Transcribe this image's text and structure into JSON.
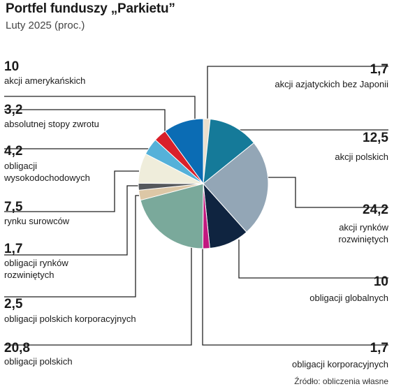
{
  "header": {
    "title": "Portfel funduszy „Parkietu”",
    "subtitle": "Luty 2025 (proc.)"
  },
  "footer": {
    "source": "Źródło: obliczenia własne"
  },
  "chart_data": {
    "type": "pie",
    "title": "Portfel funduszy „Parkietu”",
    "subtitle": "Luty 2025 (proc.)",
    "slices": [
      {
        "value": "1,7",
        "num": 1.7,
        "label": [
          "akcji azjatyckich bez Japonii"
        ],
        "color": "#eadfcd"
      },
      {
        "value": "12,5",
        "num": 12.5,
        "label": [
          "akcji polskich"
        ],
        "color": "#157a99"
      },
      {
        "value": "24,2",
        "num": 24.2,
        "label": [
          "akcji rynków",
          "rozwiniętych"
        ],
        "color": "#93a6b6"
      },
      {
        "value": "10",
        "num": 10,
        "label": [
          "obligacji globalnych"
        ],
        "color": "#0f2440"
      },
      {
        "value": "1,7",
        "num": 1.7,
        "label": [
          "obligacji korporacyjnych"
        ],
        "color": "#c2187f"
      },
      {
        "value": "20,8",
        "num": 20.8,
        "label": [
          "obligacji polskich"
        ],
        "color": "#7aa99b"
      },
      {
        "value": "2,5",
        "num": 2.5,
        "label": [
          "obligacji polskich korporacyjnych"
        ],
        "color": "#dcc7a6"
      },
      {
        "value": "1,7",
        "num": 1.7,
        "label": [
          "obligacji rynków",
          "rozwiniętych"
        ],
        "color": "#55585c"
      },
      {
        "value": "7,5",
        "num": 7.5,
        "label": [
          "rynku surowców"
        ],
        "color": "#efeddb"
      },
      {
        "value": "4,2",
        "num": 4.2,
        "label": [
          "obligacji",
          "wysokodochodowych"
        ],
        "color": "#55b1d9"
      },
      {
        "value": "3,2",
        "num": 3.2,
        "label": [
          "absolutnej stopy zwrotu"
        ],
        "color": "#d9202b"
      },
      {
        "value": "10",
        "num": 10,
        "label": [
          "akcji amerykańskich"
        ],
        "color": "#0b6cb4"
      }
    ]
  }
}
